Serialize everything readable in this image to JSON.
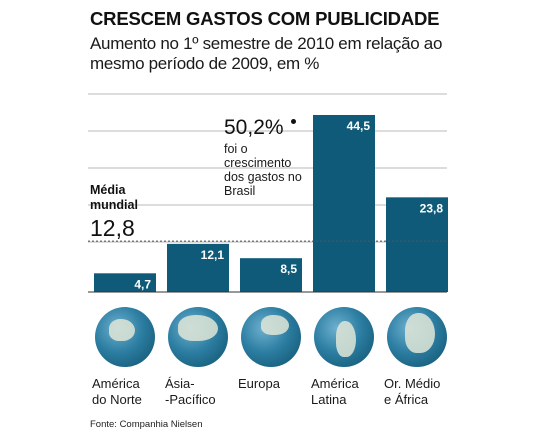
{
  "header": {
    "title": "CRESCEM GASTOS COM PUBLICIDADE",
    "subtitle": "Aumento no 1º semestre de 2010 em relação ao mesmo período de 2009, em %"
  },
  "reference": {
    "label": "Média mundial",
    "value": "12,8"
  },
  "note": {
    "value": "50,2%",
    "text": "foi o crescimento dos gastos no Brasil"
  },
  "source": "Fonte: Companhia Nielsen",
  "colors": {
    "bar": "#0f5a78",
    "bar_label": "#ffffff",
    "grid": "#b9b9b9",
    "reference_line": "#555555",
    "globe_ocean": "#2c7ea2",
    "globe_land": "#dfe6d7"
  },
  "globes": [
    {
      "name": "globe-americas-north-icon"
    },
    {
      "name": "globe-asia-icon"
    },
    {
      "name": "globe-europe-icon"
    },
    {
      "name": "globe-americas-south-icon"
    },
    {
      "name": "globe-africa-icon"
    }
  ],
  "chart_data": {
    "type": "bar",
    "title": "CRESCEM GASTOS COM PUBLICIDADE",
    "subtitle": "Aumento no 1º semestre de 2010 em relação ao mesmo período de 2009, em %",
    "categories": [
      "América do Norte",
      "Ásia-Pacífico",
      "Europa",
      "América Latina",
      "Or. Médio e África"
    ],
    "values": [
      4.7,
      12.1,
      8.5,
      44.5,
      23.8
    ],
    "value_labels": [
      "4,7",
      "12,1",
      "8,5",
      "44,5",
      "23,8"
    ],
    "reference_line": {
      "label": "Média mundial",
      "value": 12.8
    },
    "ylim": [
      0,
      45
    ],
    "grid": true,
    "legend": "none"
  }
}
